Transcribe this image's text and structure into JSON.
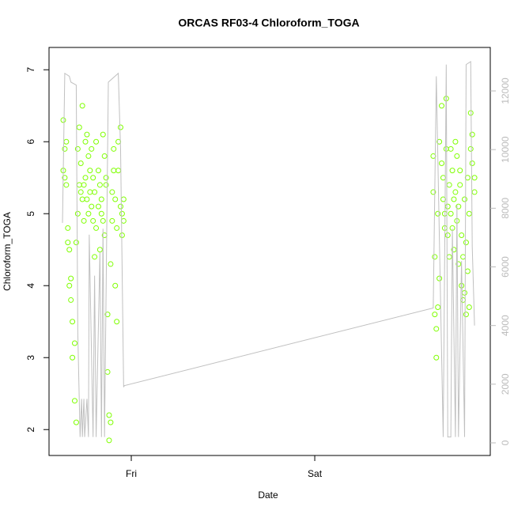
{
  "chart_data": {
    "type": "scatter",
    "title": "ORCAS RF03-4 Chloroform_TOGA",
    "x_label": "Date",
    "y_label": "Chloroform_TOGA",
    "xlim": [
      13.24,
      70.96
    ],
    "xticks": [
      {
        "value": 24,
        "label": "Fri"
      },
      {
        "value": 48,
        "label": "Sat"
      }
    ],
    "ylim": [
      1.64,
      7.31
    ],
    "yticks": [
      2,
      3,
      4,
      5,
      6,
      7
    ],
    "y2lim": [
      -431,
      13483
    ],
    "y2ticks": [
      0,
      2000,
      4000,
      6000,
      8000,
      10000,
      12000
    ],
    "series": [
      {
        "type": "scatter",
        "color": "#7fff00",
        "x": [
          15.1,
          15.1,
          15.3,
          15.3,
          15.5,
          15.5,
          15.7,
          15.7,
          15.9,
          15.9,
          16.1,
          16.1,
          16.3,
          16.3,
          16.6,
          16.6,
          16.8,
          16.8,
          17.0,
          17.0,
          17.2,
          17.2,
          17.4,
          17.4,
          17.6,
          17.6,
          17.8,
          17.8,
          18.0,
          18.0,
          18.2,
          18.2,
          18.4,
          18.4,
          18.6,
          18.6,
          18.8,
          18.8,
          19.0,
          19.0,
          19.2,
          19.2,
          19.4,
          19.4,
          19.7,
          19.7,
          19.9,
          19.9,
          20.1,
          20.1,
          20.3,
          20.3,
          20.5,
          20.5,
          20.7,
          20.7,
          20.9,
          20.9,
          21.1,
          21.1,
          21.3,
          21.3,
          21.5,
          21.5,
          21.7,
          21.7,
          21.9,
          21.9,
          22.1,
          22.1,
          22.3,
          22.3,
          22.6,
          22.6,
          22.8,
          22.8,
          23.0,
          23.0,
          63.5,
          63.5,
          63.7,
          63.7,
          63.9,
          63.9,
          64.1,
          64.1,
          64.3,
          64.3,
          64.6,
          64.6,
          64.8,
          64.8,
          65.0,
          65.0,
          65.2,
          65.2,
          65.4,
          65.4,
          65.6,
          65.6,
          65.8,
          65.8,
          66.0,
          66.0,
          66.2,
          66.2,
          66.4,
          66.4,
          66.6,
          66.6,
          66.8,
          66.8,
          67.0,
          67.0,
          67.2,
          67.2,
          67.4,
          67.4,
          67.6,
          67.6,
          67.8,
          67.8,
          68.0,
          68.0,
          68.2,
          68.2,
          68.4,
          68.4,
          68.6,
          68.6,
          68.9,
          68.9
        ],
        "values": [
          6.3,
          5.6,
          5.9,
          5.5,
          6.0,
          5.4,
          4.8,
          4.6,
          4.5,
          4.0,
          4.1,
          3.8,
          3.5,
          3.0,
          3.2,
          2.4,
          2.1,
          4.6,
          5.0,
          5.9,
          6.2,
          5.4,
          5.7,
          5.3,
          6.5,
          5.2,
          5.4,
          4.9,
          6.0,
          5.5,
          6.1,
          5.2,
          5.8,
          5.0,
          5.6,
          5.3,
          5.9,
          5.1,
          5.5,
          4.9,
          5.3,
          4.4,
          6.0,
          4.8,
          5.6,
          5.1,
          5.4,
          4.5,
          5.2,
          5.0,
          6.1,
          4.9,
          5.8,
          4.7,
          5.5,
          5.4,
          3.6,
          2.8,
          2.2,
          1.85,
          2.1,
          4.3,
          5.3,
          4.9,
          5.9,
          5.6,
          4.0,
          5.2,
          3.5,
          4.8,
          6.0,
          5.6,
          6.2,
          5.1,
          5.0,
          4.7,
          5.2,
          4.9,
          5.8,
          5.3,
          4.4,
          3.6,
          3.4,
          3.0,
          3.7,
          5.0,
          4.1,
          6.0,
          5.7,
          6.5,
          5.5,
          5.2,
          5.0,
          4.8,
          6.6,
          5.9,
          5.1,
          4.7,
          5.4,
          4.4,
          5.9,
          5.0,
          4.8,
          5.6,
          5.2,
          4.5,
          6.0,
          5.3,
          4.9,
          5.8,
          5.1,
          4.3,
          5.6,
          5.4,
          4.7,
          4.0,
          4.4,
          3.8,
          3.9,
          5.2,
          4.6,
          3.6,
          4.2,
          5.5,
          5.0,
          3.7,
          5.9,
          6.4,
          6.1,
          5.7,
          5.3,
          5.5
        ]
      },
      {
        "type": "line",
        "color": "#c0c0c0",
        "axis": "y2",
        "x": [
          15.0,
          15.3,
          15.9,
          16.1,
          16.8,
          17.0,
          17.3,
          17.5,
          17.6,
          17.8,
          17.9,
          18.2,
          18.4,
          18.5,
          19.0,
          19.2,
          19.4,
          19.9,
          20.1,
          20.3,
          20.5,
          21.0,
          22.3,
          22.6,
          23.0,
          23.1,
          63.5,
          63.9,
          64.3,
          64.8,
          65.2,
          65.4,
          65.8,
          66.0,
          66.4,
          66.6,
          66.8,
          67.2,
          67.6,
          67.8,
          68.4,
          68.6,
          68.9
        ],
        "values": [
          7500,
          12600,
          12500,
          12300,
          12200,
          3800,
          200,
          1500,
          200,
          1500,
          200,
          1500,
          200,
          7100,
          200,
          5700,
          200,
          6500,
          200,
          7300,
          200,
          12300,
          12600,
          10000,
          1900,
          1950,
          4600,
          12500,
          7000,
          200,
          12900,
          200,
          200,
          7300,
          200,
          8100,
          200,
          6200,
          200,
          12900,
          13000,
          6700,
          4000
        ]
      }
    ]
  }
}
